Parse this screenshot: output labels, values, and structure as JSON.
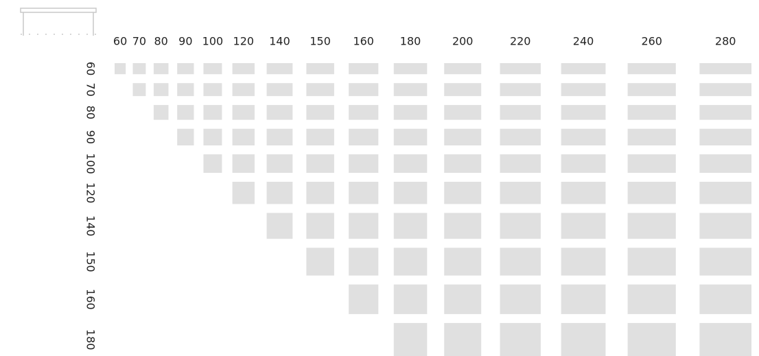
{
  "columns": [
    60,
    70,
    80,
    90,
    100,
    120,
    140,
    150,
    160,
    180,
    200,
    220,
    240,
    260,
    280
  ],
  "rows": [
    60,
    70,
    80,
    90,
    100,
    120,
    140,
    150,
    160,
    180
  ]
}
